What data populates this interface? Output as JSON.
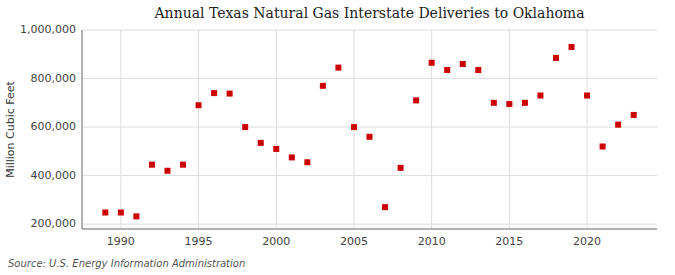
{
  "chart_data": {
    "type": "scatter",
    "title": "Annual Texas Natural Gas Interstate Deliveries to Oklahoma",
    "ylabel": "Million Cubic Feet",
    "annotations": [
      "Source: U.S. Energy Information Administration"
    ],
    "x": [
      1989,
      1990,
      1991,
      1992,
      1993,
      1994,
      1995,
      1996,
      1997,
      1998,
      1999,
      2000,
      2001,
      2002,
      2003,
      2004,
      2005,
      2006,
      2007,
      2008,
      2009,
      2010,
      2011,
      2012,
      2013,
      2014,
      2015,
      2016,
      2017,
      2018,
      2019,
      2020,
      2021,
      2022,
      2023
    ],
    "values": [
      248000,
      248000,
      232000,
      445000,
      420000,
      445000,
      690000,
      740000,
      738000,
      600000,
      535000,
      510000,
      475000,
      455000,
      770000,
      845000,
      600000,
      560000,
      270000,
      432000,
      710000,
      865000,
      835000,
      860000,
      835000,
      700000,
      695000,
      700000,
      730000,
      885000,
      930000,
      730000,
      520000,
      610000,
      650000
    ],
    "color": "#cc0000",
    "marker": "square",
    "xlim": [
      1987.5,
      2024.5
    ],
    "ylim": [
      180000,
      1000000
    ],
    "xticks": [
      1990,
      1995,
      2000,
      2005,
      2010,
      2015,
      2020
    ],
    "yticks": [
      {
        "value": 200000,
        "label": "200,000"
      },
      {
        "value": 400000,
        "label": "400,000"
      },
      {
        "value": 600000,
        "label": "600,000"
      },
      {
        "value": 800000,
        "label": "800,000"
      },
      {
        "value": 1000000,
        "label": "1,000,000"
      }
    ],
    "grid": true
  }
}
